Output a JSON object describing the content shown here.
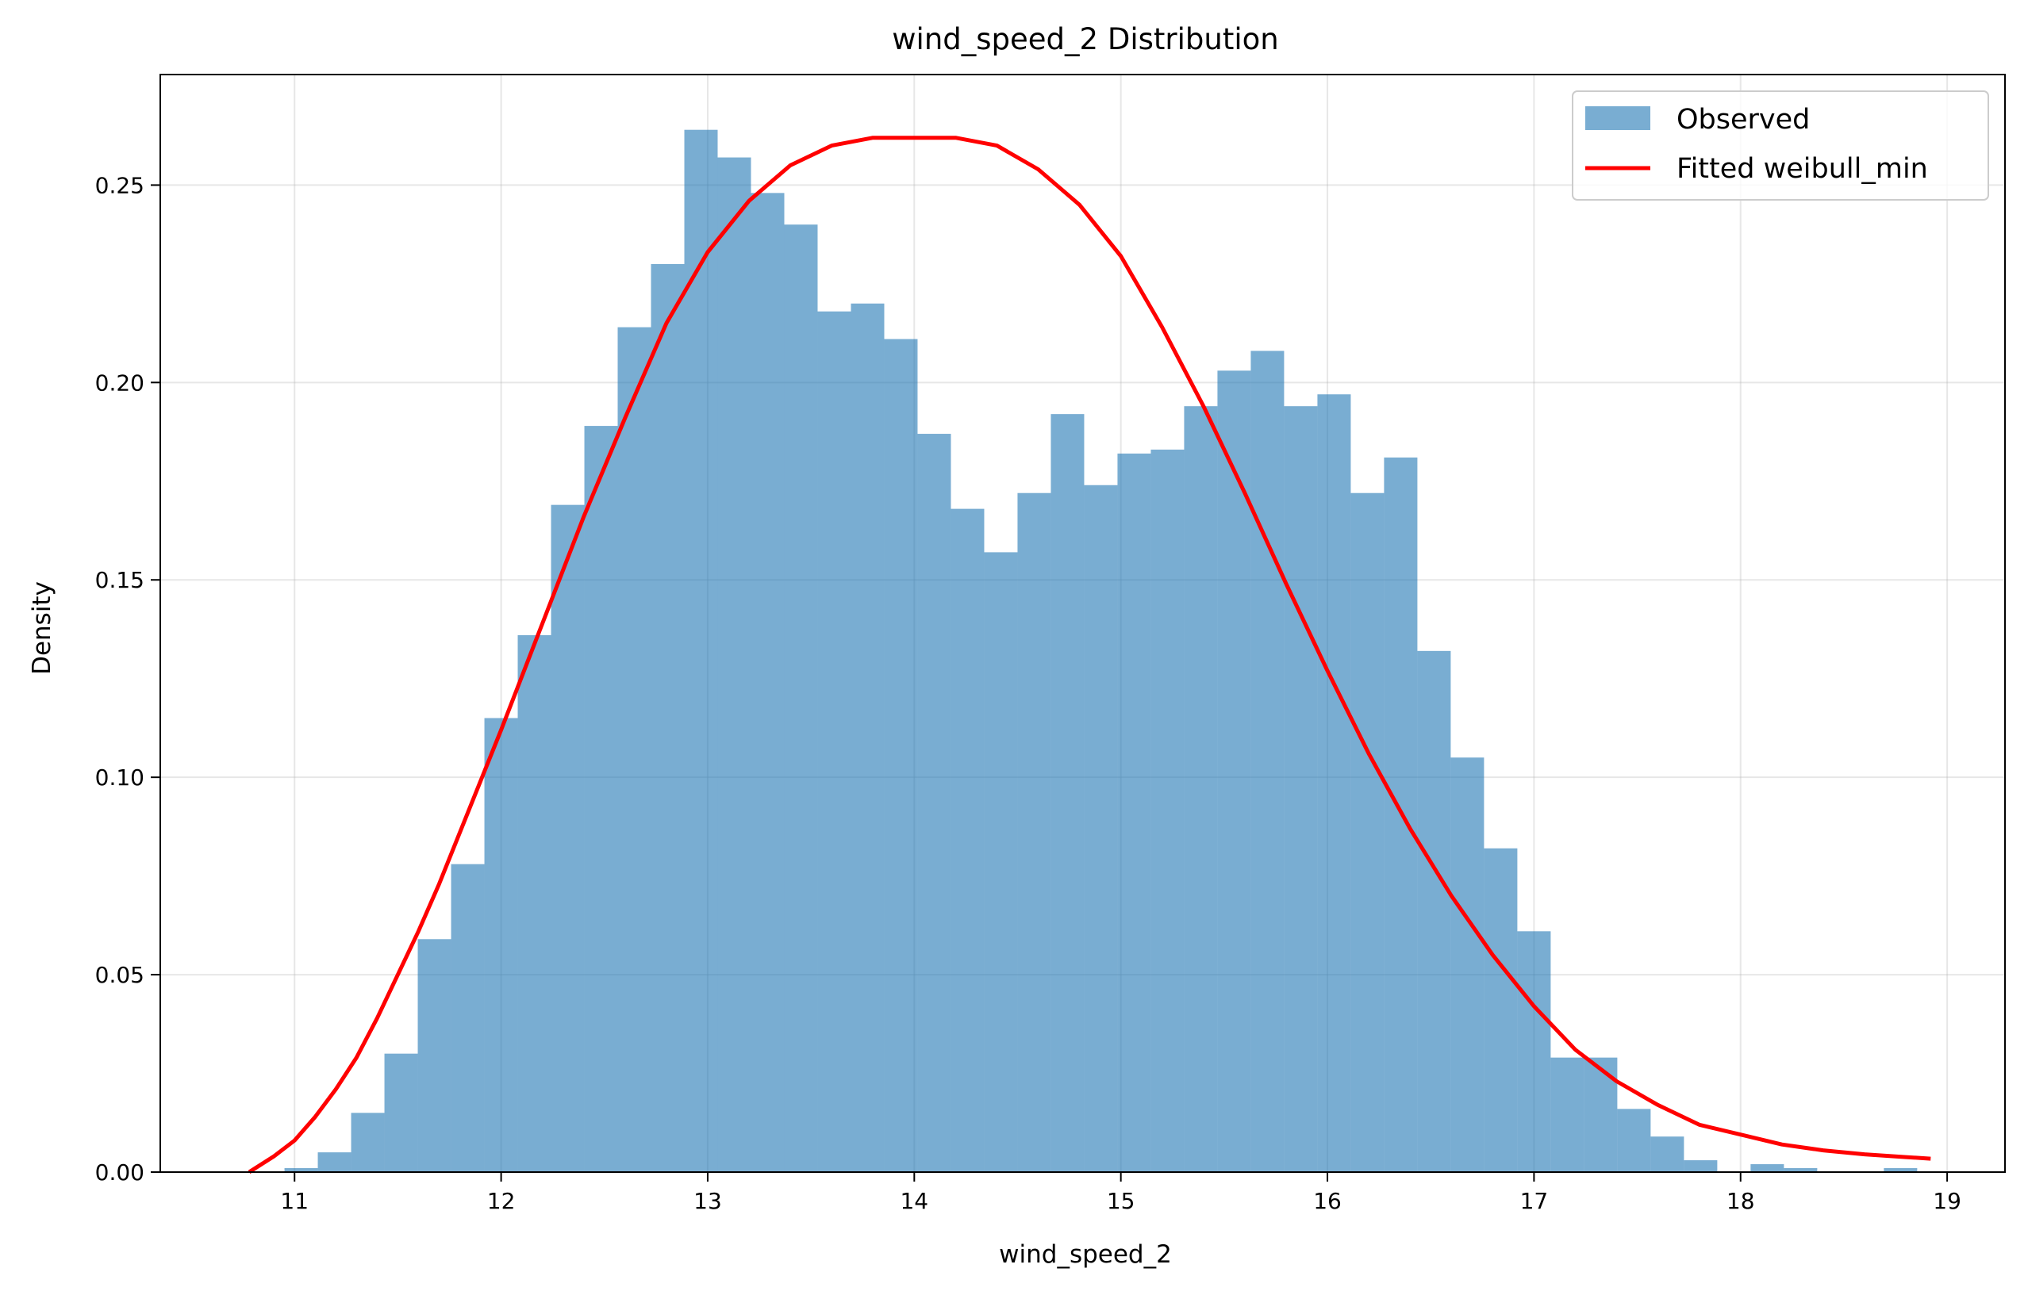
{
  "chart_data": {
    "type": "bar",
    "title": "wind_speed_2 Distribution",
    "xlabel": "wind_speed_2",
    "ylabel": "Density",
    "xlim": [
      10.35,
      19.28
    ],
    "ylim": [
      0,
      0.278
    ],
    "xticks": [
      11,
      12,
      13,
      14,
      15,
      16,
      17,
      18,
      19
    ],
    "yticks": [
      0.0,
      0.05,
      0.1,
      0.15,
      0.2,
      0.25
    ],
    "ytick_labels": [
      "0.00",
      "0.05",
      "0.10",
      "0.15",
      "0.20",
      "0.25"
    ],
    "grid": true,
    "legend_position": "top-right",
    "legend": [
      {
        "label": "Observed",
        "kind": "patch"
      },
      {
        "label": "Fitted weibull_min",
        "kind": "line"
      }
    ],
    "histogram": {
      "name": "Observed",
      "bin_start": 10.79,
      "bin_width": 0.1613,
      "values": [
        0.0,
        0.001,
        0.005,
        0.015,
        0.03,
        0.059,
        0.078,
        0.115,
        0.136,
        0.169,
        0.189,
        0.214,
        0.23,
        0.264,
        0.257,
        0.248,
        0.24,
        0.218,
        0.22,
        0.211,
        0.187,
        0.168,
        0.157,
        0.172,
        0.192,
        0.174,
        0.182,
        0.183,
        0.194,
        0.203,
        0.208,
        0.194,
        0.197,
        0.172,
        0.181,
        0.132,
        0.105,
        0.082,
        0.061,
        0.029,
        0.029,
        0.016,
        0.009,
        0.003,
        0.0,
        0.002,
        0.001,
        0.0,
        0.0,
        0.001
      ]
    },
    "fit": {
      "name": "Fitted weibull_min",
      "x": [
        10.78,
        10.9,
        11.0,
        11.1,
        11.2,
        11.3,
        11.4,
        11.5,
        11.6,
        11.7,
        11.8,
        11.9,
        12.0,
        12.2,
        12.4,
        12.6,
        12.8,
        13.0,
        13.2,
        13.4,
        13.6,
        13.8,
        14.0,
        14.1,
        14.2,
        14.4,
        14.6,
        14.8,
        15.0,
        15.2,
        15.4,
        15.6,
        15.8,
        16.0,
        16.2,
        16.4,
        16.6,
        16.8,
        17.0,
        17.2,
        17.4,
        17.6,
        17.8,
        18.0,
        18.2,
        18.4,
        18.6,
        18.8,
        18.92
      ],
      "y": [
        0.0,
        0.004,
        0.008,
        0.014,
        0.021,
        0.029,
        0.039,
        0.05,
        0.061,
        0.073,
        0.086,
        0.099,
        0.112,
        0.139,
        0.166,
        0.191,
        0.215,
        0.233,
        0.246,
        0.255,
        0.26,
        0.262,
        0.262,
        0.262,
        0.262,
        0.26,
        0.254,
        0.245,
        0.232,
        0.214,
        0.194,
        0.172,
        0.149,
        0.127,
        0.106,
        0.087,
        0.07,
        0.055,
        0.042,
        0.031,
        0.023,
        0.017,
        0.012,
        0.0095,
        0.007,
        0.0055,
        0.0045,
        0.0038,
        0.0034
      ]
    }
  }
}
